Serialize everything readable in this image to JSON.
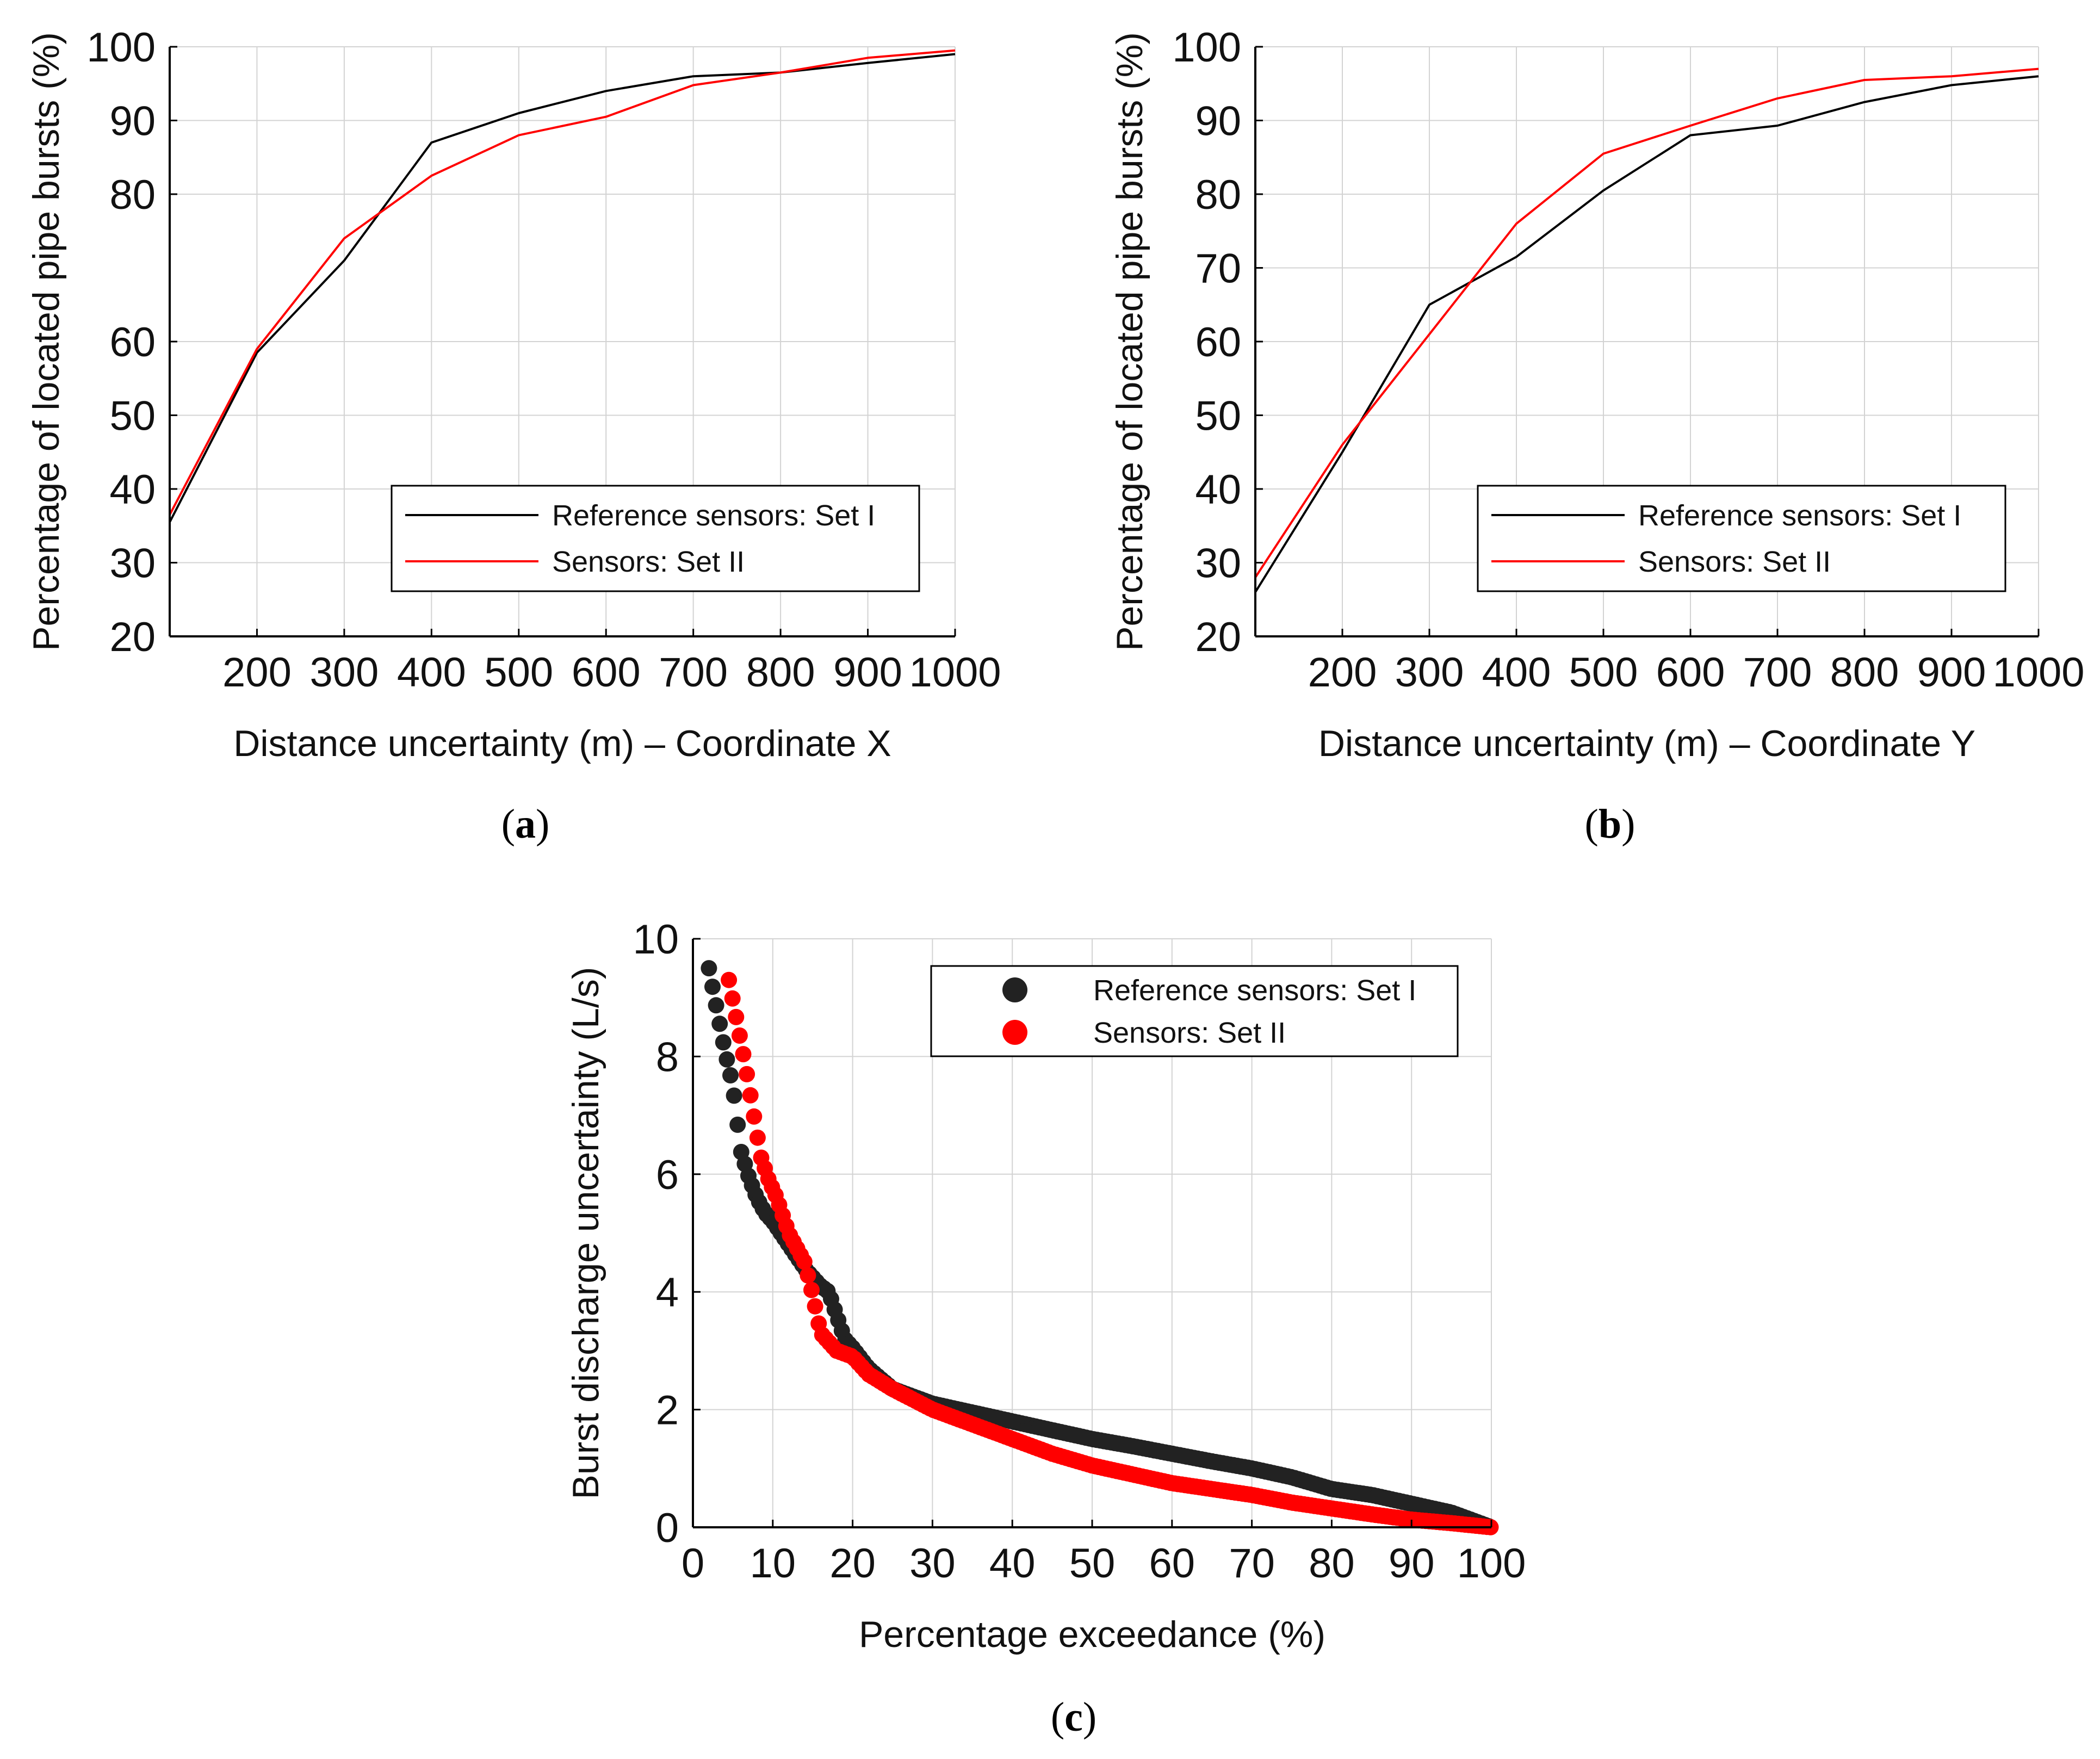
{
  "colors": {
    "set1": "#000000",
    "set2": "#ff0000",
    "set1_marker": "#222222",
    "grid": "#d3d3d3"
  },
  "chart_data": [
    {
      "id": "a",
      "type": "line",
      "caption": "a",
      "xlabel": "Distance uncertainty (m) – Coordinate X",
      "ylabel": "Percentage of located pipe bursts (%)",
      "xlim": [
        100,
        1000
      ],
      "ylim": [
        20,
        100
      ],
      "xticks": [
        200,
        300,
        400,
        500,
        600,
        700,
        800,
        900,
        1000
      ],
      "xtick_labels": [
        "200",
        "300",
        "400",
        "500",
        "600",
        "700",
        "800",
        "900",
        "1000"
      ],
      "yticks": [
        20,
        30,
        40,
        50,
        60,
        80,
        90,
        100
      ],
      "ytick_labels": [
        "20",
        "30",
        "40",
        "50",
        "60",
        "80",
        "90",
        "100"
      ],
      "grid": true,
      "legend_position": "bottom-right",
      "series": [
        {
          "name": "Reference sensors: Set I",
          "color_key": "set1",
          "x": [
            100,
            200,
            300,
            400,
            500,
            600,
            700,
            800,
            900,
            1000
          ],
          "y": [
            35.5,
            58.5,
            71,
            87,
            91,
            94,
            96,
            96.5,
            97.8,
            99
          ]
        },
        {
          "name": "Sensors: Set II",
          "color_key": "set2",
          "x": [
            100,
            200,
            300,
            400,
            500,
            600,
            700,
            800,
            900,
            1000
          ],
          "y": [
            36.5,
            59,
            74,
            82.5,
            88,
            90.5,
            94.8,
            96.5,
            98.5,
            99.5
          ]
        }
      ]
    },
    {
      "id": "b",
      "type": "line",
      "caption": "b",
      "xlabel": "Distance uncertainty (m) – Coordinate Y",
      "ylabel": "Percentage of located pipe bursts (%)",
      "xlim": [
        100,
        1000
      ],
      "ylim": [
        20,
        100
      ],
      "xticks": [
        200,
        300,
        400,
        500,
        600,
        700,
        800,
        900,
        1000
      ],
      "xtick_labels": [
        "200",
        "300",
        "400",
        "500",
        "600",
        "700",
        "800",
        "900",
        "1000"
      ],
      "yticks": [
        20,
        30,
        40,
        50,
        60,
        70,
        80,
        90,
        100
      ],
      "ytick_labels": [
        "20",
        "30",
        "40",
        "50",
        "60",
        "70",
        "80",
        "90",
        "100"
      ],
      "grid": true,
      "legend_position": "bottom-right",
      "series": [
        {
          "name": "Reference sensors: Set I",
          "color_key": "set1",
          "x": [
            100,
            200,
            300,
            400,
            500,
            600,
            700,
            800,
            900,
            1000
          ],
          "y": [
            26,
            45,
            65,
            71.5,
            80.5,
            88,
            89.3,
            92.5,
            94.8,
            96
          ]
        },
        {
          "name": "Sensors: Set II",
          "color_key": "set2",
          "x": [
            100,
            200,
            300,
            400,
            500,
            600,
            700,
            800,
            900,
            1000
          ],
          "y": [
            28,
            46,
            61,
            76,
            85.5,
            89.3,
            93,
            95.5,
            96,
            97
          ]
        }
      ]
    },
    {
      "id": "c",
      "type": "scatter",
      "caption": "c",
      "xlabel": "Percentage exceedance (%)",
      "ylabel": "Burst discharge uncertainty (L/s)",
      "xlim": [
        0,
        100
      ],
      "ylim": [
        0,
        10
      ],
      "xticks": [
        0,
        10,
        20,
        30,
        40,
        50,
        60,
        70,
        80,
        90,
        100
      ],
      "xtick_labels": [
        "0",
        "10",
        "20",
        "30",
        "40",
        "50",
        "60",
        "70",
        "80",
        "90",
        "100"
      ],
      "yticks": [
        0,
        2,
        4,
        6,
        8,
        10
      ],
      "ytick_labels": [
        "0",
        "2",
        "4",
        "6",
        "8",
        "10"
      ],
      "grid": true,
      "legend_position": "top-right",
      "series": [
        {
          "name": "Reference sensors: Set I",
          "color_key": "set1_marker",
          "curve_x": [
            2,
            3,
            4,
            5,
            6,
            7,
            8,
            9,
            10,
            12,
            14,
            16,
            17,
            18,
            19,
            20,
            22,
            25,
            30,
            35,
            40,
            45,
            50,
            55,
            60,
            65,
            70,
            75,
            80,
            85,
            90,
            95,
            100
          ],
          "curve_y": [
            9.5,
            8.8,
            8.1,
            7.5,
            6.4,
            5.95,
            5.6,
            5.35,
            5.2,
            4.8,
            4.4,
            4.1,
            4.0,
            3.6,
            3.2,
            3.05,
            2.7,
            2.35,
            2.1,
            1.95,
            1.8,
            1.65,
            1.5,
            1.38,
            1.25,
            1.12,
            1.0,
            0.85,
            0.65,
            0.55,
            0.4,
            0.25,
            0.0
          ]
        },
        {
          "name": "Sensors: Set II",
          "color_key": "set2",
          "curve_x": [
            4.5,
            5.5,
            6.5,
            7.5,
            8.5,
            9.5,
            10.5,
            12,
            14,
            15,
            16,
            17,
            18,
            20,
            22,
            25,
            30,
            35,
            40,
            45,
            50,
            55,
            60,
            65,
            70,
            75,
            80,
            85,
            90,
            95,
            100
          ],
          "curve_y": [
            9.3,
            8.6,
            7.9,
            7.1,
            6.3,
            5.9,
            5.6,
            5.0,
            4.5,
            3.95,
            3.3,
            3.15,
            3.0,
            2.9,
            2.6,
            2.35,
            2.0,
            1.75,
            1.5,
            1.25,
            1.05,
            0.9,
            0.75,
            0.65,
            0.55,
            0.42,
            0.32,
            0.22,
            0.13,
            0.07,
            0.0
          ]
        }
      ]
    }
  ]
}
